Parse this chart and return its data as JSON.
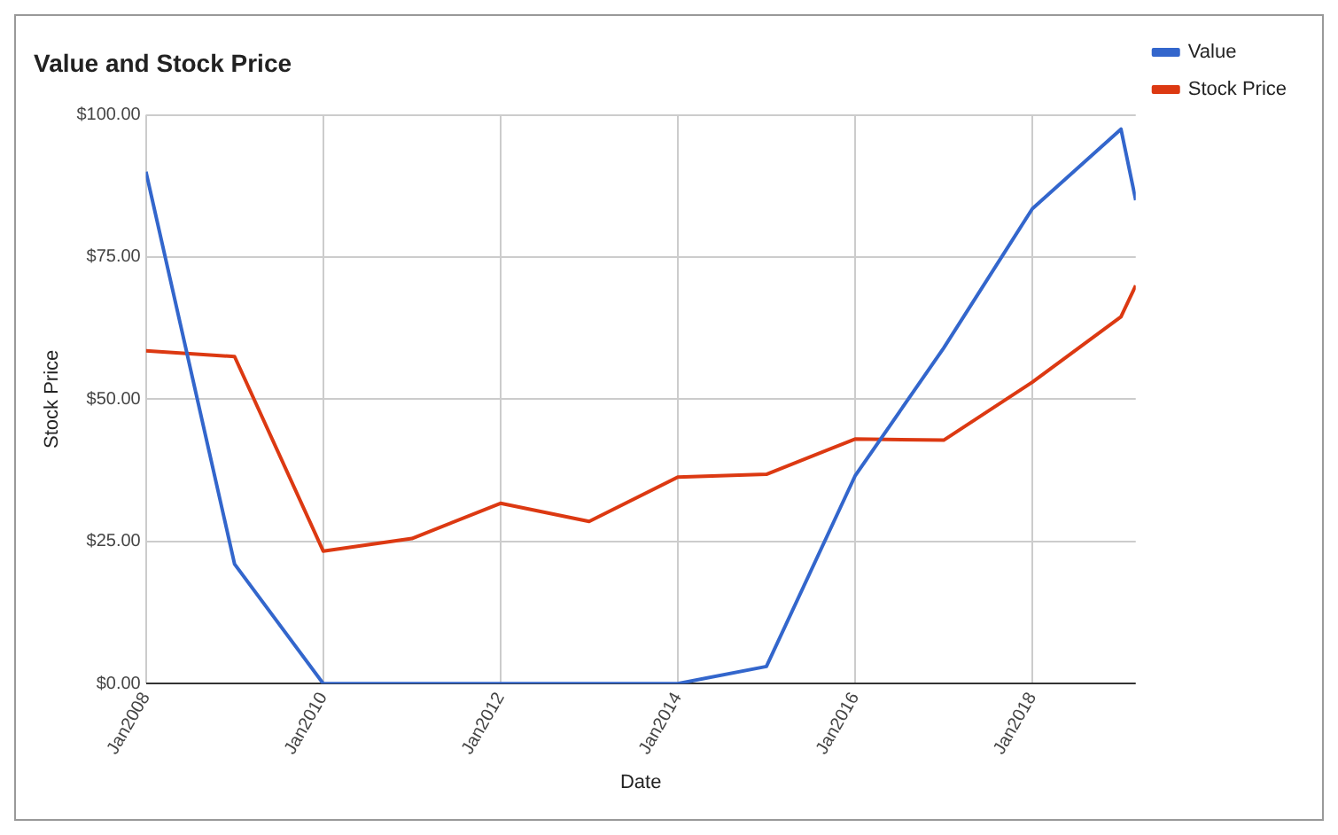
{
  "chart_data": {
    "type": "line",
    "title": "Value and Stock Price",
    "xlabel": "Date",
    "ylabel": "Stock Price",
    "x": [
      "2008-01",
      "2009-01",
      "2010-01",
      "2011-01",
      "2012-01",
      "2013-01",
      "2014-01",
      "2015-01",
      "2016-01",
      "2017-01",
      "2018-01",
      "2019-01",
      "2019-03"
    ],
    "series": [
      {
        "name": "Value",
        "color": "#3366cc",
        "values": [
          90,
          21,
          0,
          0,
          0,
          0,
          0,
          3,
          36.5,
          59,
          83.5,
          97.5,
          85
        ]
      },
      {
        "name": "Stock Price",
        "color": "#dc3912",
        "values": [
          58.5,
          57.5,
          23.3,
          25.5,
          31.7,
          28.5,
          36.3,
          36.8,
          43,
          42.8,
          53,
          64.5,
          70
        ]
      }
    ],
    "xlim": [
      "2008-01",
      "2019-03"
    ],
    "xticks": [
      {
        "value": "2008-01",
        "label": "Jan2008"
      },
      {
        "value": "2010-01",
        "label": "Jan2010"
      },
      {
        "value": "2012-01",
        "label": "Jan2012"
      },
      {
        "value": "2014-01",
        "label": "Jan2014"
      },
      {
        "value": "2016-01",
        "label": "Jan2016"
      },
      {
        "value": "2018-01",
        "label": "Jan2018"
      }
    ],
    "ylim": [
      0,
      100
    ],
    "yticks": [
      {
        "value": 0,
        "label": "$0.00"
      },
      {
        "value": 25,
        "label": "$25.00"
      },
      {
        "value": 50,
        "label": "$50.00"
      },
      {
        "value": 75,
        "label": "$75.00"
      },
      {
        "value": 100,
        "label": "$100.00"
      }
    ],
    "grid": true,
    "legend": "top right",
    "marker": "none",
    "line_style": "solid"
  }
}
